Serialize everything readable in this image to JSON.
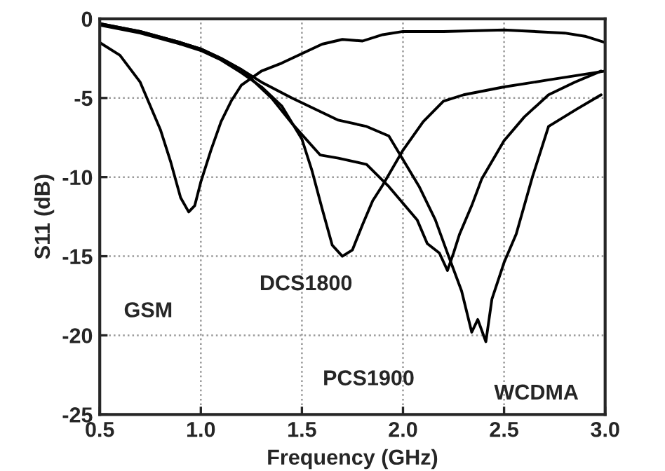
{
  "chart_data": {
    "type": "line",
    "xlabel": "Frequency (GHz)",
    "ylabel": "S11 (dB)",
    "xlim": [
      0.5,
      3.0
    ],
    "ylim": [
      -25,
      0
    ],
    "xticks": [
      {
        "value": 0.5,
        "label": "0.5"
      },
      {
        "value": 1.0,
        "label": "1.0"
      },
      {
        "value": 1.5,
        "label": "1.5"
      },
      {
        "value": 2.0,
        "label": "2.0"
      },
      {
        "value": 2.5,
        "label": "2.5"
      },
      {
        "value": 3.0,
        "label": "3.0"
      }
    ],
    "yticks": [
      -25,
      -20,
      -15,
      -10,
      -5,
      0
    ],
    "grid": true,
    "line_style": "solid",
    "series": [
      {
        "color": "#000000",
        "x": [
          0.5,
          0.6,
          0.7,
          0.8,
          0.85,
          0.9,
          0.94,
          0.97,
          1.0,
          1.05,
          1.1,
          1.15,
          1.2,
          1.3,
          1.4,
          1.5,
          1.6,
          1.7,
          1.8,
          1.9,
          2.0,
          2.2,
          2.5,
          2.8,
          2.9,
          3.0
        ],
        "values": [
          -1.5,
          -2.3,
          -4.0,
          -7.0,
          -9.0,
          -11.3,
          -12.2,
          -11.8,
          -10.3,
          -8.3,
          -6.5,
          -5.2,
          -4.2,
          -3.3,
          -2.8,
          -2.2,
          -1.6,
          -1.3,
          -1.4,
          -1.0,
          -0.8,
          -0.8,
          -0.7,
          -0.9,
          -1.1,
          -1.5
        ]
      },
      {
        "color": "#000000",
        "x": [
          0.5,
          0.7,
          0.9,
          1.0,
          1.1,
          1.2,
          1.3,
          1.4,
          1.5,
          1.55,
          1.6,
          1.65,
          1.7,
          1.75,
          1.8,
          1.85,
          1.9,
          2.0,
          2.1,
          2.2,
          2.3,
          2.5,
          2.7,
          2.9,
          3.0
        ],
        "values": [
          -0.4,
          -0.9,
          -1.6,
          -2.0,
          -2.6,
          -3.4,
          -4.3,
          -5.5,
          -7.6,
          -9.6,
          -12.0,
          -14.3,
          -15.0,
          -14.6,
          -13.0,
          -11.5,
          -10.5,
          -8.3,
          -6.5,
          -5.2,
          -4.8,
          -4.3,
          -3.9,
          -3.5,
          -3.3
        ]
      },
      {
        "color": "#000000",
        "x": [
          0.5,
          0.7,
          0.9,
          1.0,
          1.1,
          1.2,
          1.35,
          1.45,
          1.59,
          1.68,
          1.82,
          1.93,
          2.07,
          2.12,
          2.18,
          2.22,
          2.25,
          2.28,
          2.34,
          2.39,
          2.5,
          2.6,
          2.72,
          2.85,
          2.98
        ],
        "values": [
          -0.3,
          -0.8,
          -1.5,
          -1.9,
          -2.5,
          -3.2,
          -5.0,
          -6.6,
          -8.6,
          -8.8,
          -9.2,
          -10.6,
          -12.7,
          -14.2,
          -14.8,
          -15.9,
          -14.8,
          -13.6,
          -11.8,
          -10.1,
          -7.7,
          -6.2,
          -4.8,
          -4.0,
          -3.3
        ]
      },
      {
        "color": "#000000",
        "x": [
          0.5,
          0.7,
          0.9,
          1.0,
          1.1,
          1.2,
          1.3,
          1.45,
          1.68,
          1.82,
          1.93,
          2.08,
          2.16,
          2.22,
          2.29,
          2.34,
          2.37,
          2.41,
          2.44,
          2.5,
          2.56,
          2.64,
          2.72,
          2.86,
          2.98
        ],
        "values": [
          -0.3,
          -0.8,
          -1.5,
          -1.9,
          -2.5,
          -3.2,
          -4.0,
          -5.0,
          -6.4,
          -6.8,
          -7.4,
          -10.6,
          -12.7,
          -14.8,
          -17.2,
          -19.8,
          -19.0,
          -20.4,
          -17.7,
          -15.4,
          -13.6,
          -10.0,
          -6.8,
          -5.7,
          -4.8
        ]
      }
    ],
    "annotations": [
      "GSM",
      "DCS1800",
      "PCS1900",
      "WCDMA"
    ]
  }
}
